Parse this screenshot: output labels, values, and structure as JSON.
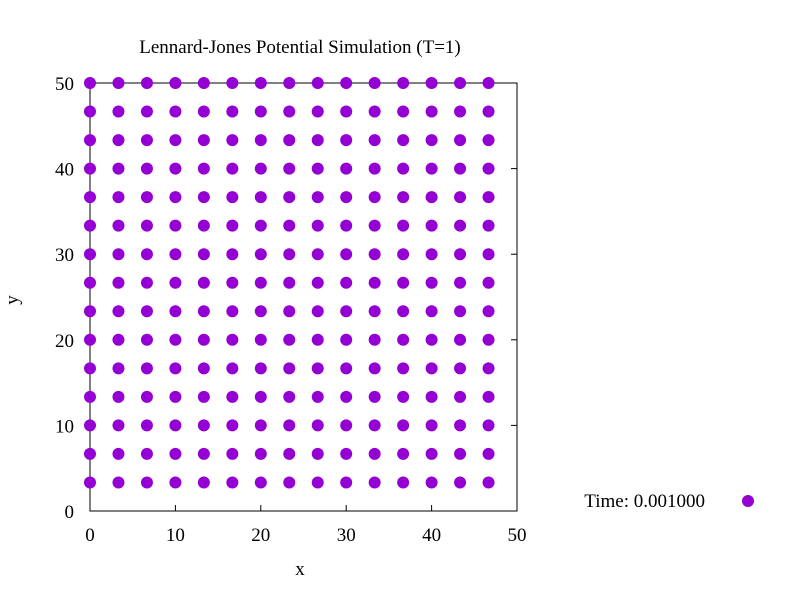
{
  "chart_data": {
    "type": "scatter",
    "title": "Lennard-Jones Potential Simulation (T=1)",
    "xlabel": "x",
    "ylabel": "y",
    "xlim": [
      0,
      50
    ],
    "ylim": [
      0,
      50
    ],
    "xticks": [
      0,
      10,
      20,
      30,
      40,
      50
    ],
    "yticks": [
      0,
      10,
      20,
      30,
      40,
      50
    ],
    "grid": false,
    "legend_position": "bottom-right outside",
    "colors": {
      "points": "#9400d3",
      "axes": "#000000"
    },
    "series": [
      {
        "name": "Time: 0.001000",
        "grid_spacing": 3.333,
        "x_values": [
          0,
          3.333,
          6.667,
          10,
          13.333,
          16.667,
          20,
          23.333,
          26.667,
          30,
          33.333,
          36.667,
          40,
          43.333,
          46.667
        ],
        "y_values": [
          3.333,
          6.667,
          10,
          13.333,
          16.667,
          20,
          23.333,
          26.667,
          30,
          33.333,
          36.667,
          40,
          43.333,
          46.667,
          50
        ]
      }
    ]
  }
}
